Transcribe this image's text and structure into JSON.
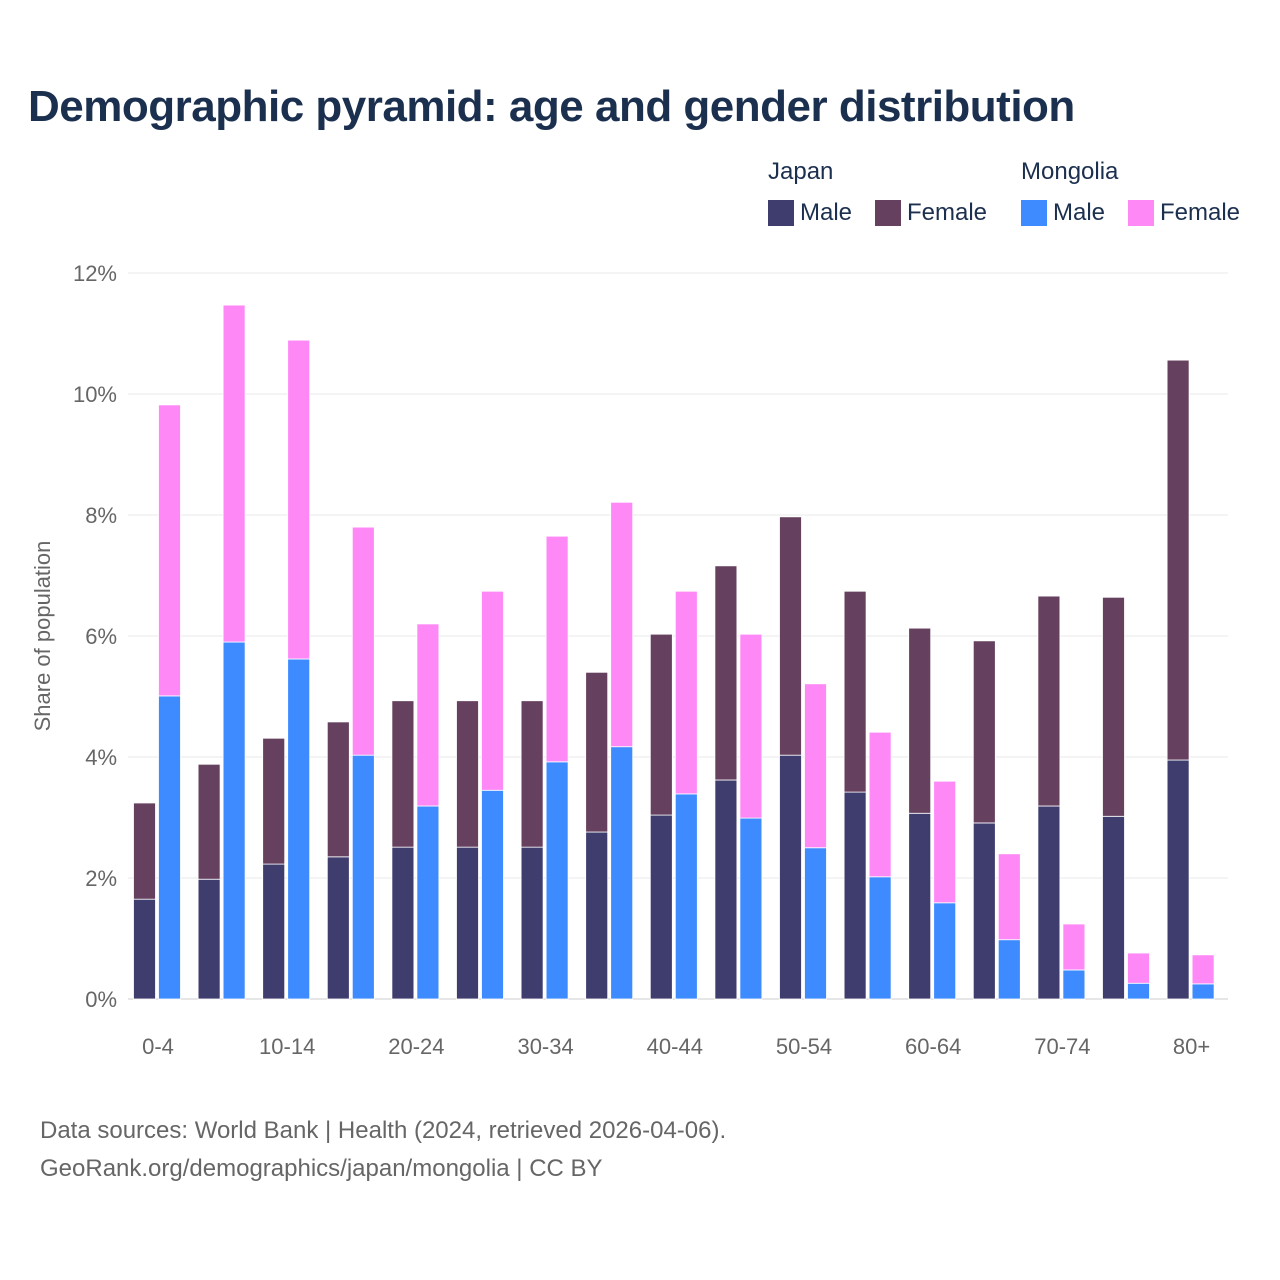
{
  "title": "Demographic pyramid: age and gender distribution",
  "legend": {
    "groups": [
      {
        "name": "Japan",
        "items": [
          {
            "label": "Male",
            "color": "#3f3d6e"
          },
          {
            "label": "Female",
            "color": "#66405f"
          }
        ]
      },
      {
        "name": "Mongolia",
        "items": [
          {
            "label": "Male",
            "color": "#3d8bff"
          },
          {
            "label": "Female",
            "color": "#ff88f7"
          }
        ]
      }
    ]
  },
  "footer": {
    "line1": "Data sources: World Bank | Health (2024, retrieved 2026-04-06).",
    "line2": "GeoRank.org/demographics/japan/mongolia | CC BY"
  },
  "chart_data": {
    "type": "bar",
    "stacked": true,
    "title": "Demographic pyramid: age and gender distribution",
    "xlabel": "",
    "ylabel": "Share of population",
    "ylim": [
      0,
      12
    ],
    "yticks": [
      0,
      2,
      4,
      6,
      8,
      10,
      12
    ],
    "ytick_labels": [
      "0%",
      "2%",
      "4%",
      "6%",
      "8%",
      "10%",
      "12%"
    ],
    "categories": [
      "0-4",
      "5-9",
      "10-14",
      "15-19",
      "20-24",
      "25-29",
      "30-34",
      "35-39",
      "40-44",
      "45-49",
      "50-54",
      "55-59",
      "60-64",
      "65-69",
      "70-74",
      "75-79",
      "80+"
    ],
    "xtick_labels": [
      "0-4",
      "10-14",
      "20-24",
      "30-34",
      "40-44",
      "50-54",
      "60-64",
      "70-74",
      "80+"
    ],
    "series": [
      {
        "name": "Japan Male",
        "stack": "Japan",
        "color": "#3f3d6e",
        "values": [
          1.65,
          1.98,
          2.23,
          2.35,
          2.51,
          2.51,
          2.51,
          2.76,
          3.04,
          3.62,
          4.03,
          3.42,
          3.07,
          2.91,
          3.19,
          3.02,
          3.95
        ]
      },
      {
        "name": "Japan Female",
        "stack": "Japan",
        "color": "#66405f",
        "values": [
          1.59,
          1.9,
          2.08,
          2.23,
          2.42,
          2.42,
          2.42,
          2.64,
          2.99,
          3.54,
          3.94,
          3.32,
          3.06,
          3.01,
          3.47,
          3.62,
          6.61
        ]
      },
      {
        "name": "Mongolia Male",
        "stack": "Mongolia",
        "color": "#3d8bff",
        "values": [
          5.01,
          5.9,
          5.62,
          4.03,
          3.19,
          3.45,
          3.92,
          4.17,
          3.39,
          2.99,
          2.5,
          2.02,
          1.59,
          0.98,
          0.48,
          0.26,
          0.25
        ]
      },
      {
        "name": "Mongolia Female",
        "stack": "Mongolia",
        "color": "#ff88f7",
        "values": [
          4.81,
          5.57,
          5.27,
          3.77,
          3.01,
          3.29,
          3.73,
          4.04,
          3.35,
          3.04,
          2.71,
          2.39,
          2.01,
          1.42,
          0.76,
          0.5,
          0.48
        ]
      }
    ],
    "grid": true,
    "legend_position": "top-right"
  }
}
